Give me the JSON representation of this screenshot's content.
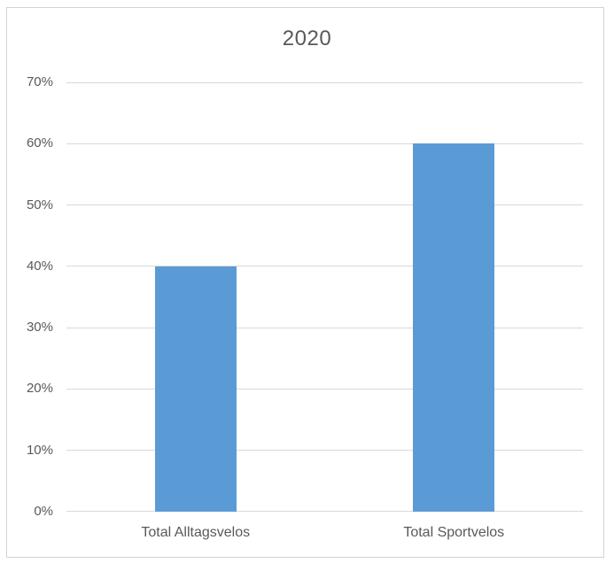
{
  "chart": {
    "title": "2020"
  },
  "chart_data": {
    "type": "bar",
    "title": "2020",
    "categories": [
      "Total Alltagsvelos",
      "Total Sportvelos"
    ],
    "values": [
      40,
      60
    ],
    "value_unit": "percent",
    "xlabel": "",
    "ylabel": "",
    "ylim": [
      0,
      70
    ],
    "ytick_step": 10,
    "ytick_labels": [
      "0%",
      "10%",
      "20%",
      "30%",
      "40%",
      "50%",
      "60%",
      "70%"
    ],
    "grid": true,
    "legend": "none",
    "colors": {
      "bar": "#5b9bd5",
      "text": "#595959",
      "gridline": "#d9d9d9",
      "axis": "#d9d9d9",
      "frame_border": "#d3d3d3",
      "background": "#ffffff"
    }
  }
}
